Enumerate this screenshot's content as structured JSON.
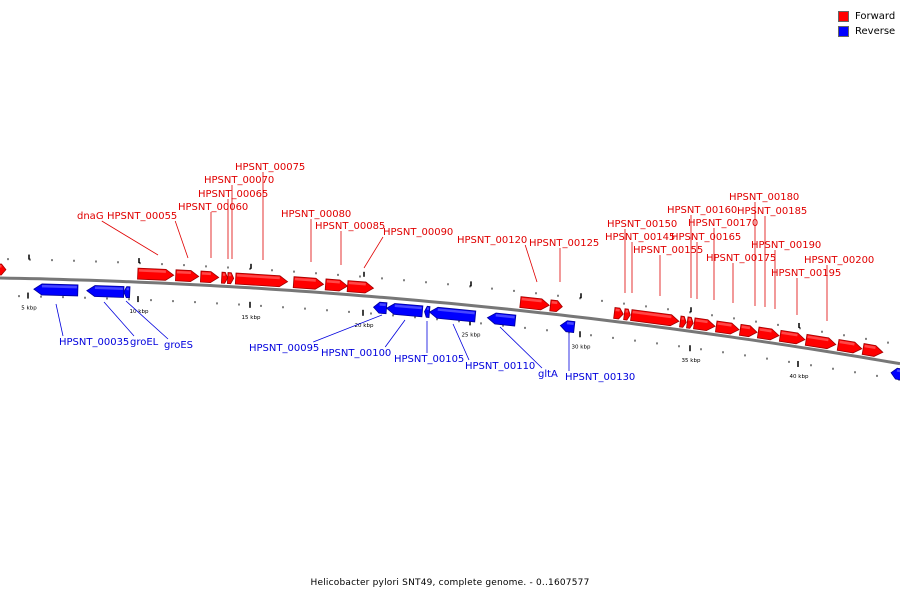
{
  "legend": {
    "forward_label": "Forward",
    "reverse_label": "Reverse",
    "forward_color": "#ff0000",
    "reverse_color": "#0000ff"
  },
  "caption": "Helicobacter pylori SNT49, complete genome. - 0..1607577",
  "scale_labels": [
    "5 kbp",
    "10 kbp",
    "15 kbp",
    "20 kbp",
    "25 kbp",
    "30 kbp",
    "35 kbp",
    "40 kbp"
  ],
  "forward_genes": [
    {
      "name": "dnaG"
    },
    {
      "name": "HPSNT_00055"
    },
    {
      "name": "HPSNT_00060"
    },
    {
      "name": "HPSNT_00065"
    },
    {
      "name": "HPSNT_00070"
    },
    {
      "name": "HPSNT_00075"
    },
    {
      "name": "HPSNT_00080"
    },
    {
      "name": "HPSNT_00085"
    },
    {
      "name": "HPSNT_00090"
    },
    {
      "name": "HPSNT_00120"
    },
    {
      "name": "HPSNT_00125"
    },
    {
      "name": "HPSNT_00145"
    },
    {
      "name": "HPSNT_00150"
    },
    {
      "name": "HPSNT_00155"
    },
    {
      "name": "HPSNT_00160"
    },
    {
      "name": "HPSNT_00165"
    },
    {
      "name": "HPSNT_00170"
    },
    {
      "name": "HPSNT_00175"
    },
    {
      "name": "HPSNT_00180"
    },
    {
      "name": "HPSNT_00185"
    },
    {
      "name": "HPSNT_00190"
    },
    {
      "name": "HPSNT_00195"
    },
    {
      "name": "HPSNT_00200"
    }
  ],
  "reverse_genes": [
    {
      "name": "HPSNT_00035"
    },
    {
      "name": "groEL"
    },
    {
      "name": "groES"
    },
    {
      "name": "HPSNT_00095"
    },
    {
      "name": "HPSNT_00100"
    },
    {
      "name": "HPSNT_00105"
    },
    {
      "name": "HPSNT_00110"
    },
    {
      "name": "gltA"
    },
    {
      "name": "HPSNT_00130"
    }
  ]
}
